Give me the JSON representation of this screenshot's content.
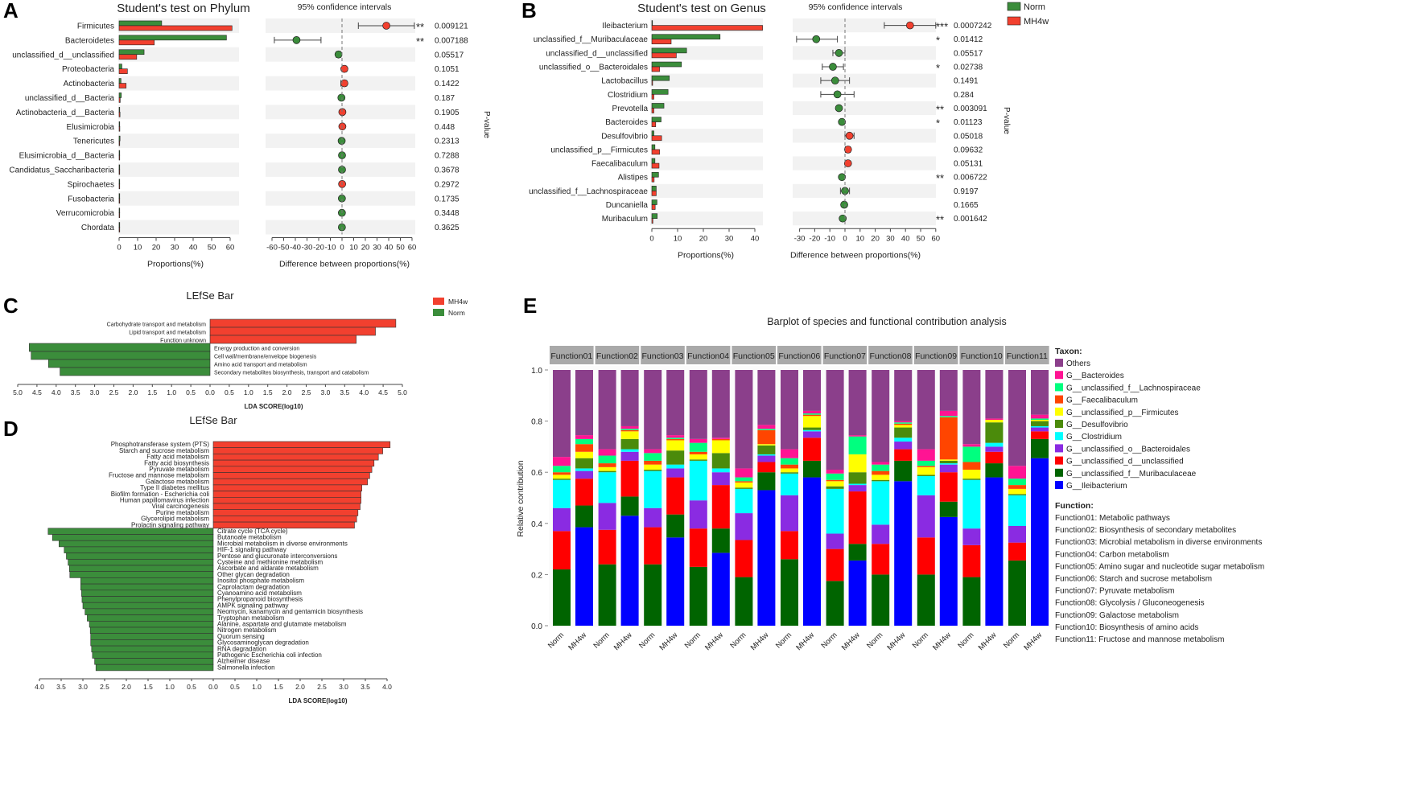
{
  "panel_letters": {
    "a": "A",
    "b": "B",
    "c": "C",
    "d": "D",
    "e": "E"
  },
  "colors": {
    "norm": "#3b8d3b",
    "mh4w": "#f2402f",
    "row_bg": "#f2f2f2"
  },
  "chart_data": [
    {
      "id": "phylum",
      "type": "bar",
      "title": "Student's test on Phylum",
      "ci_title": "95% confidence intervals",
      "xlabel": "Proportions(%)",
      "diff_xlabel": "Difference between proportions(%)",
      "pvalue_label": "P-value",
      "xticks": [
        0,
        10,
        20,
        30,
        40,
        50,
        60
      ],
      "diff_ticks": [
        -60,
        -50,
        -40,
        -30,
        -20,
        -10,
        0,
        10,
        20,
        30,
        40,
        50,
        60
      ],
      "categories": [
        "Firmicutes",
        "Bacteroidetes",
        "unclassified_d__unclassified",
        "Proteobacteria",
        "Actinobacteria",
        "unclassified_d__Bacteria",
        "Actinobacteria_d__Bacteria",
        "Elusimicrobia",
        "Tenericutes",
        "Elusimicrobia_d__Bacteria",
        "Candidatus_Saccharibacteria",
        "Spirochaetes",
        "Fusobacteria",
        "Verrucomicrobia",
        "Chordata"
      ],
      "series": [
        {
          "name": "Norm",
          "values": [
            23,
            58,
            13.5,
            1.5,
            1,
            1.2,
            0.3,
            0.3,
            0.5,
            0.2,
            0.2,
            0.1,
            0.1,
            0.1,
            0.1
          ]
        },
        {
          "name": "MH4w",
          "values": [
            61,
            19,
            9.5,
            4.5,
            3.8,
            0.6,
            0.5,
            0.4,
            0.2,
            0.1,
            0.1,
            0.2,
            0,
            0,
            0
          ]
        }
      ],
      "diff": [
        38,
        -39,
        -3,
        2,
        2,
        -0.5,
        0.3,
        0.3,
        -0.3,
        0,
        0,
        0.1,
        -0.1,
        -0.1,
        -0.1
      ],
      "ci_low": [
        14,
        -58,
        -5,
        0,
        -1,
        -1.5,
        -0.8,
        -0.8,
        -1,
        -0.5,
        -0.5,
        -0.8,
        -0.5,
        -0.5,
        -0.5
      ],
      "ci_high": [
        62,
        -18,
        -1,
        4,
        4,
        0.5,
        1.3,
        1.3,
        0.5,
        0.5,
        0.5,
        0.9,
        0.4,
        0.4,
        0.4
      ],
      "stars": [
        "**",
        "**",
        "",
        "",
        "",
        "",
        "",
        "",
        "",
        "",
        "",
        "",
        "",
        "",
        ""
      ],
      "pvalues": [
        "0.009121",
        "0.007188",
        "0.05517",
        "0.1051",
        "0.1422",
        "0.187",
        "0.1905",
        "0.448",
        "0.2313",
        "0.7288",
        "0.3678",
        "0.2972",
        "0.1735",
        "0.3448",
        "0.3625"
      ]
    },
    {
      "id": "genus",
      "type": "bar",
      "title": "Student's test on Genus",
      "ci_title": "95% confidence intervals",
      "xlabel": "Proportions(%)",
      "diff_xlabel": "Difference between proportions(%)",
      "pvalue_label": "P-value",
      "legend": [
        "Norm",
        "MH4w"
      ],
      "xticks": [
        0,
        10,
        20,
        30,
        40
      ],
      "diff_ticks": [
        -30,
        -20,
        -10,
        0,
        10,
        20,
        30,
        40,
        50,
        60
      ],
      "categories": [
        "Ileibacterium",
        "unclassified_f__Muribaculaceae",
        "unclassified_d__unclassified",
        "unclassified_o__Bacteroidales",
        "Lactobacillus",
        "Clostridium",
        "Prevotella",
        "Bacteroides",
        "Desulfovibrio",
        "unclassified_p__Firmicutes",
        "Faecalibaculum",
        "Alistipes",
        "unclassified_f__Lachnospiraceae",
        "Duncaniella",
        "Muribaculum"
      ],
      "series": [
        {
          "name": "Norm",
          "values": [
            0.1,
            26.5,
            13.5,
            11.5,
            6.8,
            6.3,
            4.7,
            3.6,
            0.8,
            1.2,
            1.2,
            2.6,
            1.7,
            2,
            2.1
          ]
        },
        {
          "name": "MH4w",
          "values": [
            43,
            7.5,
            9.5,
            3,
            0.3,
            0.8,
            0.8,
            1.5,
            3.8,
            3,
            2.8,
            0.9,
            1.7,
            1.3,
            0.4
          ]
        }
      ],
      "diff": [
        43,
        -19,
        -4,
        -8,
        -6.5,
        -5,
        -4,
        -2,
        3,
        2,
        2,
        -2,
        0,
        -0.5,
        -1.5
      ],
      "ci_low": [
        26,
        -32,
        -8,
        -15,
        -16,
        -16,
        -5,
        -3,
        0,
        0.3,
        1,
        -3,
        -3,
        -1.5,
        -2.5
      ],
      "ci_high": [
        60,
        -5,
        0,
        -1,
        3,
        6,
        -3,
        -1,
        6,
        3.5,
        3,
        -1,
        3,
        0.5,
        -0.5
      ],
      "stars": [
        "***",
        "*",
        "",
        "*",
        "",
        "",
        "**",
        "*",
        "",
        "",
        "",
        "**",
        "",
        "",
        "**"
      ],
      "pvalues": [
        "0.0007242",
        "0.01412",
        "0.05517",
        "0.02738",
        "0.1491",
        "0.284",
        "0.003091",
        "0.01123",
        "0.05018",
        "0.09632",
        "0.05131",
        "0.006722",
        "0.9197",
        "0.1665",
        "0.001642"
      ]
    },
    {
      "id": "lefse_cog",
      "type": "bar",
      "title": "LEfSe Bar",
      "xlabel": "LDA SCORE(log10)",
      "legend": [
        "MH4w",
        "Norm"
      ],
      "ticks": [
        5.0,
        4.5,
        4.0,
        3.5,
        3.0,
        2.5,
        2.0,
        1.5,
        1.0,
        0.5,
        0.0,
        0.5,
        1.0,
        1.5,
        2.0,
        2.5,
        3.0,
        3.5,
        4.0,
        4.5,
        5.0
      ],
      "mh4w": {
        "categories": [
          "Carbohydrate transport and metabolism",
          "Lipid transport and metabolism",
          "Function unknown"
        ],
        "values": [
          4.83,
          4.3,
          3.8
        ]
      },
      "norm": {
        "categories": [
          "Energy production and conversion",
          "Cell wall/membrane/envelope biogenesis",
          "Amino acid transport and metabolism",
          "Secondary metabolites biosynthesis, transport and catabolism"
        ],
        "values": [
          4.7,
          4.65,
          4.2,
          3.9
        ]
      }
    },
    {
      "id": "lefse_kegg",
      "type": "bar",
      "title": "LEfSe Bar",
      "xlabel": "LDA SCORE(log10)",
      "ticks": [
        4.0,
        3.5,
        3.0,
        2.5,
        2.0,
        1.5,
        1.0,
        0.5,
        0.0,
        0.5,
        1.0,
        1.5,
        2.0,
        2.5,
        3.0,
        3.5,
        4.0
      ],
      "mh4w": {
        "categories": [
          "Phosphotransferase system (PTS)",
          "Starch and sucrose metabolism",
          "Fatty acid metabolism",
          "Fatty acid biosynthesis",
          "Pyruvate metabolism",
          "Fructose and mannose metabolism",
          "Galactose metabolism",
          "Type II diabetes mellitus",
          "Biofilm formation - Escherichia coli",
          "Human papillomavirus infection",
          "Viral carcinogenesis",
          "Purine metabolism",
          "Glycerolipid metabolism",
          "Prolactin signaling pathway"
        ],
        "values": [
          4.07,
          3.9,
          3.8,
          3.7,
          3.65,
          3.6,
          3.55,
          3.42,
          3.4,
          3.4,
          3.38,
          3.33,
          3.3,
          3.25
        ]
      },
      "norm": {
        "categories": [
          "Citrate cycle (TCA cycle)",
          "Butanoate metabolism",
          "Microbial metabolism in diverse environments",
          "HIF-1 signaling pathway",
          "Pentose and glucuronate interconversions",
          "Cysteine and methionine metabolism",
          "Ascorbate and aldarate metabolism",
          "Other glycan degradation",
          "Inositol phosphate metabolism",
          "Caprolactam degradation",
          "Cyanoamino acid metabolism",
          "Phenylpropanoid biosynthesis",
          "AMPK signaling pathway",
          "Neomycin, kanamycin and gentamicin biosynthesis",
          "Tryptophan metabolism",
          "Alanine, aspartate and glutamate metabolism",
          "Nitrogen metabolism",
          "Quorum sensing",
          "Glycosaminoglycan degradation",
          "RNA degradation",
          "Pathogenic Escherichia coli infection",
          "Alzheimer disease",
          "Salmonella infection"
        ],
        "values": [
          3.8,
          3.7,
          3.55,
          3.43,
          3.38,
          3.34,
          3.31,
          3.3,
          3.05,
          3.05,
          3.03,
          3.02,
          3.0,
          2.95,
          2.9,
          2.85,
          2.83,
          2.82,
          2.82,
          2.8,
          2.78,
          2.73,
          2.7
        ]
      }
    },
    {
      "id": "contribution",
      "type": "bar",
      "stacked": true,
      "title": "Barplot of species and functional contribution analysis",
      "ylabel": "Relative contribution",
      "yticks": [
        "0.0",
        "0.2",
        "0.4",
        "0.6",
        "0.8",
        "1.0"
      ],
      "ylim": [
        0,
        1
      ],
      "facets": [
        "Function01",
        "Function02",
        "Function03",
        "Function04",
        "Function05",
        "Function06",
        "Function07",
        "Function08",
        "Function09",
        "Function10",
        "Function11"
      ],
      "groups": [
        "Norm",
        "MH4w"
      ],
      "taxon_title": "Taxon:",
      "taxa_stack_order": [
        "G__Ileibacterium",
        "G__unclassified_f__Muribaculaceae",
        "G__unclassified_d__unclassified",
        "G__unclassified_o__Bacteroidales",
        "G__Clostridium",
        "G__Desulfovibrio",
        "G__unclassified_p__Firmicutes",
        "G__Faecalibaculum",
        "G__unclassified_f__Lachnospiraceae",
        "G__Bacteroides",
        "Others"
      ],
      "taxa_colors": [
        "#0000ff",
        "#006400",
        "#ff0000",
        "#8a2be2",
        "#00ffff",
        "#4b8b0b",
        "#ffff00",
        "#ff4500",
        "#00ff7f",
        "#ff1493",
        "#8b3f8b"
      ],
      "legend_order": [
        "Others",
        "G__Bacteroides",
        "G__unclassified_f__Lachnospiraceae",
        "G__Faecalibaculum",
        "G__unclassified_p__Firmicutes",
        "G__Desulfovibrio",
        "G__Clostridium",
        "G__unclassified_o__Bacteroidales",
        "G__unclassified_d__unclassified",
        "G__unclassified_f__Muribaculaceae",
        "G__Ileibacterium"
      ],
      "cumulative_tops": [
        [
          [
            0,
            0.22,
            0.37,
            0.46,
            0.57,
            0.575,
            0.59,
            0.6,
            0.625,
            0.66,
            1
          ],
          [
            0.385,
            0.47,
            0.575,
            0.605,
            0.615,
            0.655,
            0.68,
            0.71,
            0.73,
            0.745,
            1
          ]
        ],
        [
          [
            0,
            0.24,
            0.375,
            0.48,
            0.6,
            0.605,
            0.62,
            0.635,
            0.665,
            0.69,
            1
          ],
          [
            0.43,
            0.505,
            0.645,
            0.68,
            0.69,
            0.73,
            0.76,
            0.765,
            0.77,
            0.78,
            1
          ]
        ],
        [
          [
            0,
            0.24,
            0.385,
            0.46,
            0.605,
            0.61,
            0.63,
            0.645,
            0.675,
            0.69,
            1
          ],
          [
            0.345,
            0.435,
            0.58,
            0.615,
            0.63,
            0.685,
            0.725,
            0.73,
            0.735,
            0.745,
            1
          ]
        ],
        [
          [
            0,
            0.23,
            0.38,
            0.49,
            0.645,
            0.65,
            0.67,
            0.68,
            0.715,
            0.73,
            1
          ],
          [
            0.285,
            0.38,
            0.55,
            0.6,
            0.615,
            0.675,
            0.725,
            0.73,
            0.73,
            0.735,
            1
          ]
        ],
        [
          [
            0,
            0.19,
            0.335,
            0.44,
            0.535,
            0.54,
            0.56,
            0.565,
            0.58,
            0.615,
            1
          ],
          [
            0.53,
            0.6,
            0.64,
            0.665,
            0.67,
            0.705,
            0.71,
            0.765,
            0.77,
            0.785,
            1
          ]
        ],
        [
          [
            0,
            0.26,
            0.37,
            0.51,
            0.595,
            0.6,
            0.615,
            0.63,
            0.655,
            0.69,
            1
          ],
          [
            0.58,
            0.645,
            0.735,
            0.76,
            0.765,
            0.775,
            0.82,
            0.825,
            0.83,
            0.84,
            1
          ]
        ],
        [
          [
            0,
            0.175,
            0.3,
            0.36,
            0.535,
            0.545,
            0.565,
            0.57,
            0.595,
            0.61,
            1
          ],
          [
            0.255,
            0.32,
            0.525,
            0.55,
            0.555,
            0.6,
            0.67,
            0.67,
            0.74,
            0.745,
            1
          ]
        ],
        [
          [
            0,
            0.2,
            0.32,
            0.395,
            0.565,
            0.57,
            0.59,
            0.605,
            0.63,
            0.64,
            1
          ],
          [
            0.565,
            0.645,
            0.69,
            0.72,
            0.735,
            0.775,
            0.785,
            0.79,
            0.795,
            0.8,
            1
          ]
        ],
        [
          [
            0,
            0.2,
            0.345,
            0.51,
            0.585,
            0.59,
            0.62,
            0.625,
            0.645,
            0.69,
            1
          ],
          [
            0.425,
            0.485,
            0.6,
            0.63,
            0.635,
            0.645,
            0.65,
            0.815,
            0.82,
            0.84,
            1
          ]
        ],
        [
          [
            0,
            0.19,
            0.315,
            0.38,
            0.57,
            0.575,
            0.61,
            0.64,
            0.7,
            0.71,
            1
          ],
          [
            0.58,
            0.635,
            0.68,
            0.7,
            0.715,
            0.795,
            0.805,
            0.805,
            0.805,
            0.81,
            1
          ]
        ],
        [
          [
            0,
            0.255,
            0.325,
            0.39,
            0.51,
            0.515,
            0.535,
            0.55,
            0.575,
            0.625,
            1
          ],
          [
            0.655,
            0.73,
            0.76,
            0.775,
            0.78,
            0.8,
            0.805,
            0.805,
            0.81,
            0.825,
            1
          ]
        ]
      ],
      "function_title": "Function:",
      "function_legend": [
        "Function01: Metabolic pathways",
        "Function02: Biosynthesis of secondary metabolites",
        "Function03: Microbial metabolism in diverse environments",
        "Function04: Carbon metabolism",
        "Function05: Amino sugar and nucleotide sugar metabolism",
        "Function06: Starch and sucrose metabolism",
        "Function07: Pyruvate metabolism",
        "Function08: Glycolysis / Gluconeogenesis",
        "Function09: Galactose metabolism",
        "Function10: Biosynthesis of amino acids",
        "Function11: Fructose and mannose metabolism"
      ]
    }
  ]
}
